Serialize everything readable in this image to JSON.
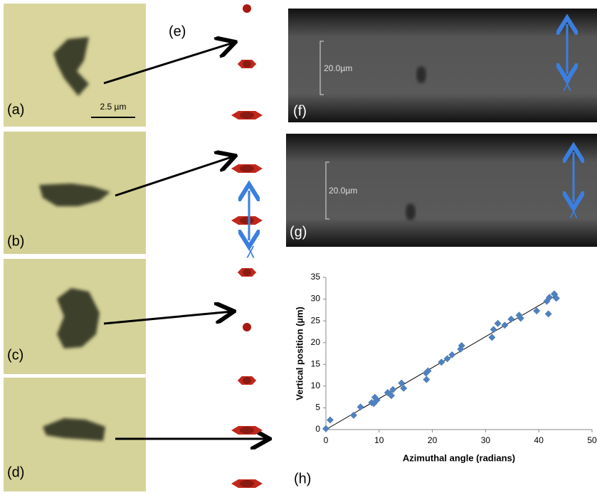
{
  "panel_labels": [
    "(a)",
    "(b)",
    "(c)",
    "(d)",
    "(e)",
    "(f)",
    "(g)",
    "(h)"
  ],
  "scale_labels": [
    "2.5 µm",
    "20.0µm",
    "20.0µm"
  ],
  "axis_symbol": "χ",
  "chart_data": {
    "type": "scatter",
    "xlabel": "Azimuthal angle (radians)",
    "ylabel": "Vertical position (µm)",
    "color": "#4f81bd",
    "x": [
      0,
      0.8,
      5.2,
      6.5,
      8.6,
      9,
      9.2,
      9.6,
      11.6,
      12,
      12.3,
      12.6,
      14.2,
      14.6,
      18.8,
      18.9,
      19.2,
      21.7,
      22.8,
      23.7,
      25.3,
      25.5,
      31.2,
      31.5,
      32.3,
      33.6,
      34.8,
      36.3,
      36.6,
      39.6,
      41.5,
      41.8,
      42,
      42.9,
      43.3
    ],
    "values": [
      0.2,
      2.2,
      3.3,
      5.2,
      6.2,
      6,
      7.4,
      6.8,
      8.5,
      8.2,
      7.8,
      9.2,
      10.7,
      9.5,
      13,
      11.5,
      13.5,
      15.5,
      16.3,
      17.2,
      18.5,
      19.3,
      21.2,
      23,
      24.4,
      24,
      25.4,
      26.3,
      25.6,
      27.3,
      29.5,
      26.6,
      30.4,
      31.2,
      30.2
    ],
    "trendline": {
      "x": [
        0,
        43.5
      ],
      "y": [
        0,
        31
      ]
    },
    "xlim": [
      0,
      50
    ],
    "ylim": [
      0,
      35
    ],
    "xticks": [
      0,
      10,
      20,
      30,
      40,
      50
    ],
    "yticks": [
      0,
      5,
      10,
      15,
      20,
      25,
      30,
      35
    ]
  }
}
